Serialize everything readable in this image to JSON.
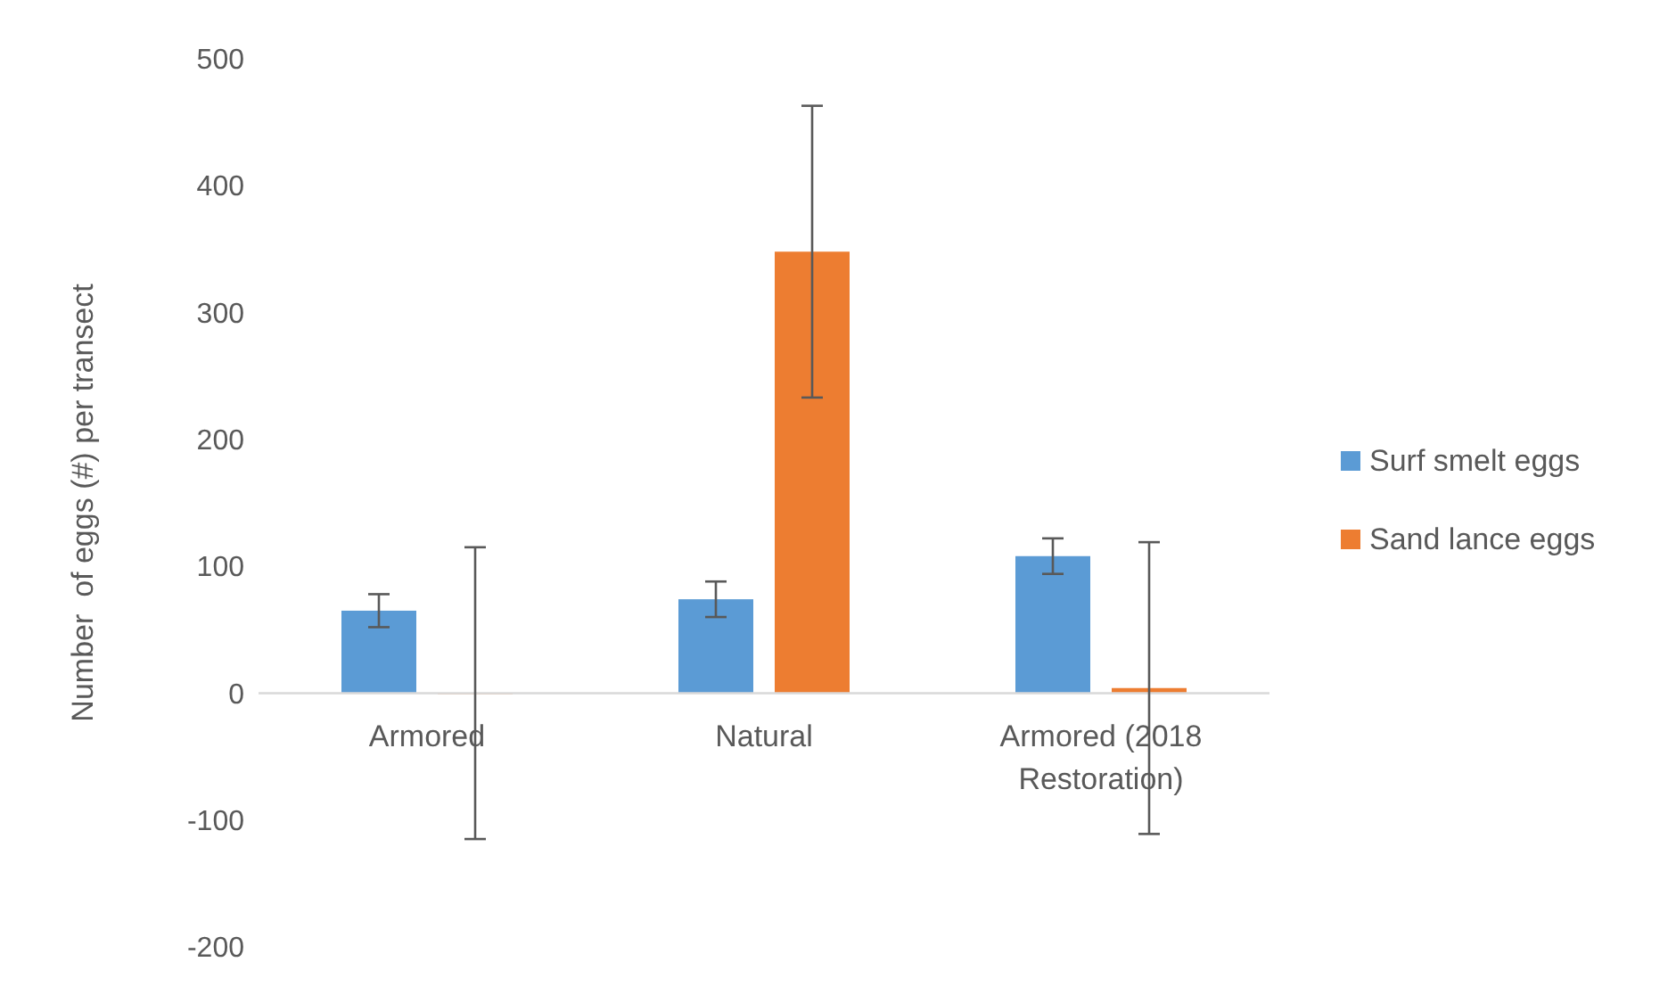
{
  "chart_data": {
    "type": "bar",
    "ylabel": "Number  of eggs (#) per transect",
    "categories": [
      "Armored",
      "Natural",
      "Armored (2018 Restoration)"
    ],
    "series": [
      {
        "name": "Surf smelt eggs",
        "color": "#5b9bd5",
        "values": [
          65,
          74,
          108
        ],
        "errors": [
          13,
          14,
          14
        ]
      },
      {
        "name": "Sand lance eggs",
        "color": "#ed7d31",
        "values": [
          0,
          348,
          4
        ],
        "errors": [
          115,
          115,
          115
        ]
      }
    ],
    "ylim": [
      -200,
      500
    ],
    "yticks": [
      -200,
      -100,
      0,
      100,
      200,
      300,
      400,
      500
    ],
    "grid": false,
    "legend": "right"
  }
}
